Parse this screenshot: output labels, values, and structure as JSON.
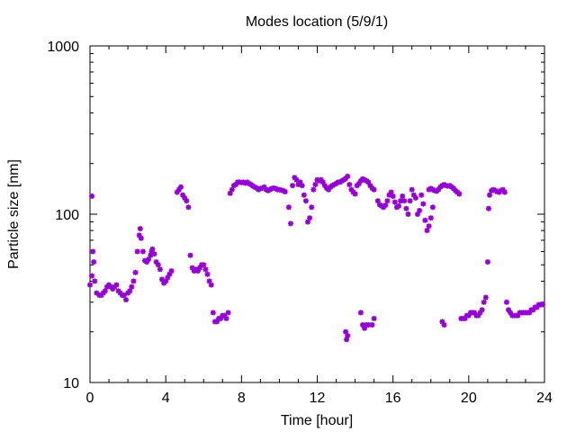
{
  "chart_data": {
    "type": "scatter",
    "title": "Modes location (5/9/1)",
    "xlabel": "Time [hour]",
    "ylabel": "Particle size [nm]",
    "xlim": [
      0,
      24
    ],
    "ylim": [
      10,
      1000
    ],
    "y_scale": "log",
    "grid": false,
    "legend": "none",
    "x_ticks": [
      0,
      4,
      8,
      12,
      16,
      20,
      24
    ],
    "x_tick_labels": [
      "0",
      "4",
      "8",
      "12",
      "16",
      "20",
      "24"
    ],
    "y_ticks": [
      10,
      100,
      1000
    ],
    "y_tick_labels": [
      "10",
      "100",
      "1000"
    ],
    "marker_color": "#9400d3",
    "series": [
      {
        "points": [
          [
            0.0,
            38
          ],
          [
            0.1,
            43
          ],
          [
            0.15,
            60
          ],
          [
            0.2,
            52
          ],
          [
            0.25,
            40
          ],
          [
            0.35,
            34
          ],
          [
            0.5,
            33
          ],
          [
            0.6,
            33
          ],
          [
            0.7,
            34
          ],
          [
            0.8,
            35
          ],
          [
            0.9,
            37
          ],
          [
            1.0,
            38
          ],
          [
            1.1,
            37
          ],
          [
            1.2,
            36
          ],
          [
            1.3,
            37
          ],
          [
            1.4,
            38
          ],
          [
            1.5,
            35
          ],
          [
            1.6,
            34
          ],
          [
            1.7,
            33
          ],
          [
            1.8,
            33
          ],
          [
            1.9,
            31
          ],
          [
            2.0,
            34
          ],
          [
            2.1,
            35
          ],
          [
            2.2,
            37
          ],
          [
            2.3,
            40
          ],
          [
            2.4,
            45
          ],
          [
            2.5,
            60
          ],
          [
            2.6,
            75
          ],
          [
            2.65,
            82
          ],
          [
            2.7,
            72
          ],
          [
            2.8,
            60
          ],
          [
            2.9,
            53
          ],
          [
            3.0,
            52
          ],
          [
            3.1,
            54
          ],
          [
            3.2,
            57
          ],
          [
            3.25,
            60
          ],
          [
            3.3,
            62
          ],
          [
            3.4,
            58
          ],
          [
            3.5,
            52
          ],
          [
            3.6,
            50
          ],
          [
            3.7,
            47
          ],
          [
            3.8,
            41
          ],
          [
            3.9,
            39
          ],
          [
            4.0,
            40
          ],
          [
            4.1,
            42
          ],
          [
            4.2,
            44
          ],
          [
            4.3,
            46
          ],
          [
            4.6,
            135
          ],
          [
            4.7,
            140
          ],
          [
            4.8,
            145
          ],
          [
            4.9,
            130
          ],
          [
            5.0,
            125
          ],
          [
            5.1,
            120
          ],
          [
            5.2,
            110
          ],
          [
            5.3,
            57
          ],
          [
            5.4,
            48
          ],
          [
            5.5,
            46
          ],
          [
            5.6,
            47
          ],
          [
            5.7,
            46
          ],
          [
            5.8,
            48
          ],
          [
            5.9,
            50
          ],
          [
            6.0,
            50
          ],
          [
            6.1,
            47
          ],
          [
            6.2,
            44
          ],
          [
            6.3,
            40
          ],
          [
            6.4,
            38
          ],
          [
            6.5,
            26
          ],
          [
            6.6,
            23
          ],
          [
            6.7,
            23
          ],
          [
            6.8,
            24
          ],
          [
            6.9,
            24
          ],
          [
            7.0,
            25
          ],
          [
            7.1,
            25
          ],
          [
            7.2,
            24
          ],
          [
            7.3,
            26
          ],
          [
            7.4,
            133
          ],
          [
            7.5,
            140
          ],
          [
            7.6,
            148
          ],
          [
            7.7,
            150
          ],
          [
            7.8,
            155
          ],
          [
            7.9,
            155
          ],
          [
            8.0,
            154
          ],
          [
            8.1,
            155
          ],
          [
            8.2,
            153
          ],
          [
            8.3,
            155
          ],
          [
            8.4,
            152
          ],
          [
            8.5,
            150
          ],
          [
            8.6,
            147
          ],
          [
            8.7,
            145
          ],
          [
            8.8,
            143
          ],
          [
            8.9,
            140
          ],
          [
            9.0,
            142
          ],
          [
            9.1,
            143
          ],
          [
            9.2,
            145
          ],
          [
            9.3,
            140
          ],
          [
            9.4,
            138
          ],
          [
            9.5,
            140
          ],
          [
            9.6,
            142
          ],
          [
            9.7,
            143
          ],
          [
            9.8,
            142
          ],
          [
            9.9,
            140
          ],
          [
            10.0,
            140
          ],
          [
            10.1,
            139
          ],
          [
            10.2,
            138
          ],
          [
            10.3,
            136
          ],
          [
            10.5,
            110
          ],
          [
            10.6,
            88
          ],
          [
            10.7,
            148
          ],
          [
            10.8,
            165
          ],
          [
            10.9,
            160
          ],
          [
            11.0,
            150
          ],
          [
            11.1,
            155
          ],
          [
            11.2,
            148
          ],
          [
            11.3,
            130
          ],
          [
            11.4,
            120
          ],
          [
            11.5,
            90
          ],
          [
            11.6,
            95
          ],
          [
            11.7,
            110
          ],
          [
            11.8,
            140
          ],
          [
            11.9,
            150
          ],
          [
            12.0,
            160
          ],
          [
            12.1,
            158
          ],
          [
            12.2,
            160
          ],
          [
            12.3,
            155
          ],
          [
            12.4,
            148
          ],
          [
            12.5,
            143
          ],
          [
            12.6,
            140
          ],
          [
            12.7,
            145
          ],
          [
            12.8,
            148
          ],
          [
            12.9,
            150
          ],
          [
            13.0,
            152
          ],
          [
            13.1,
            155
          ],
          [
            13.2,
            155
          ],
          [
            13.3,
            158
          ],
          [
            13.4,
            160
          ],
          [
            13.5,
            163
          ],
          [
            13.6,
            168
          ],
          [
            13.7,
            150
          ],
          [
            13.8,
            140
          ],
          [
            13.9,
            135
          ],
          [
            14.0,
            132
          ],
          [
            14.1,
            148
          ],
          [
            14.2,
            152
          ],
          [
            14.3,
            158
          ],
          [
            14.4,
            162
          ],
          [
            14.5,
            160
          ],
          [
            14.6,
            158
          ],
          [
            14.7,
            155
          ],
          [
            14.8,
            148
          ],
          [
            14.9,
            143
          ],
          [
            15.0,
            140
          ],
          [
            13.5,
            20
          ],
          [
            13.55,
            18
          ],
          [
            13.6,
            19
          ],
          [
            14.3,
            26
          ],
          [
            14.4,
            22
          ],
          [
            14.5,
            21
          ],
          [
            14.6,
            22
          ],
          [
            14.7,
            22
          ],
          [
            14.9,
            22
          ],
          [
            15.0,
            24
          ],
          [
            15.2,
            120
          ],
          [
            15.3,
            114
          ],
          [
            15.4,
            112
          ],
          [
            15.5,
            110
          ],
          [
            15.6,
            113
          ],
          [
            15.7,
            120
          ],
          [
            15.8,
            130
          ],
          [
            15.9,
            135
          ],
          [
            16.0,
            128
          ],
          [
            16.1,
            118
          ],
          [
            16.2,
            110
          ],
          [
            16.3,
            112
          ],
          [
            16.4,
            120
          ],
          [
            16.5,
            128
          ],
          [
            16.6,
            120
          ],
          [
            16.7,
            108
          ],
          [
            16.8,
            100
          ],
          [
            16.9,
            120
          ],
          [
            17.0,
            140
          ],
          [
            17.1,
            130
          ],
          [
            17.2,
            125
          ],
          [
            17.3,
            100
          ],
          [
            17.4,
            105
          ],
          [
            17.5,
            130
          ],
          [
            17.6,
            115
          ],
          [
            17.7,
            92
          ],
          [
            17.8,
            80
          ],
          [
            17.9,
            85
          ],
          [
            18.0,
            95
          ],
          [
            18.1,
            110
          ],
          [
            17.9,
            140
          ],
          [
            18.0,
            142
          ],
          [
            18.1,
            140
          ],
          [
            18.2,
            138
          ],
          [
            18.3,
            137
          ],
          [
            18.4,
            140
          ],
          [
            18.5,
            145
          ],
          [
            18.6,
            148
          ],
          [
            18.7,
            150
          ],
          [
            18.8,
            148
          ],
          [
            18.9,
            147
          ],
          [
            19.0,
            148
          ],
          [
            19.1,
            145
          ],
          [
            19.2,
            142
          ],
          [
            19.3,
            138
          ],
          [
            19.4,
            135
          ],
          [
            19.5,
            132
          ],
          [
            18.6,
            23
          ],
          [
            18.7,
            22
          ],
          [
            19.6,
            24
          ],
          [
            19.7,
            24
          ],
          [
            19.8,
            24
          ],
          [
            19.9,
            25
          ],
          [
            20.0,
            25
          ],
          [
            20.1,
            26
          ],
          [
            20.2,
            26
          ],
          [
            20.3,
            26
          ],
          [
            20.4,
            25
          ],
          [
            20.5,
            25
          ],
          [
            20.6,
            26
          ],
          [
            20.7,
            27
          ],
          [
            20.8,
            30
          ],
          [
            20.9,
            32
          ],
          [
            21.0,
            52
          ],
          [
            21.05,
            108
          ],
          [
            21.1,
            130
          ],
          [
            21.2,
            138
          ],
          [
            21.3,
            140
          ],
          [
            21.4,
            138
          ],
          [
            21.5,
            136
          ],
          [
            21.6,
            135
          ],
          [
            21.7,
            138
          ],
          [
            21.8,
            140
          ],
          [
            21.9,
            135
          ],
          [
            22.0,
            30
          ],
          [
            22.1,
            27
          ],
          [
            22.2,
            26
          ],
          [
            22.3,
            25
          ],
          [
            22.4,
            25
          ],
          [
            22.5,
            25
          ],
          [
            22.6,
            25
          ],
          [
            22.7,
            26
          ],
          [
            22.8,
            26
          ],
          [
            22.9,
            26
          ],
          [
            23.0,
            26
          ],
          [
            23.1,
            26
          ],
          [
            23.2,
            26
          ],
          [
            23.3,
            27
          ],
          [
            23.4,
            27
          ],
          [
            23.5,
            28
          ],
          [
            23.6,
            28
          ],
          [
            23.7,
            29
          ],
          [
            23.8,
            29
          ],
          [
            23.9,
            29
          ],
          [
            0.1,
            128
          ]
        ]
      }
    ]
  }
}
